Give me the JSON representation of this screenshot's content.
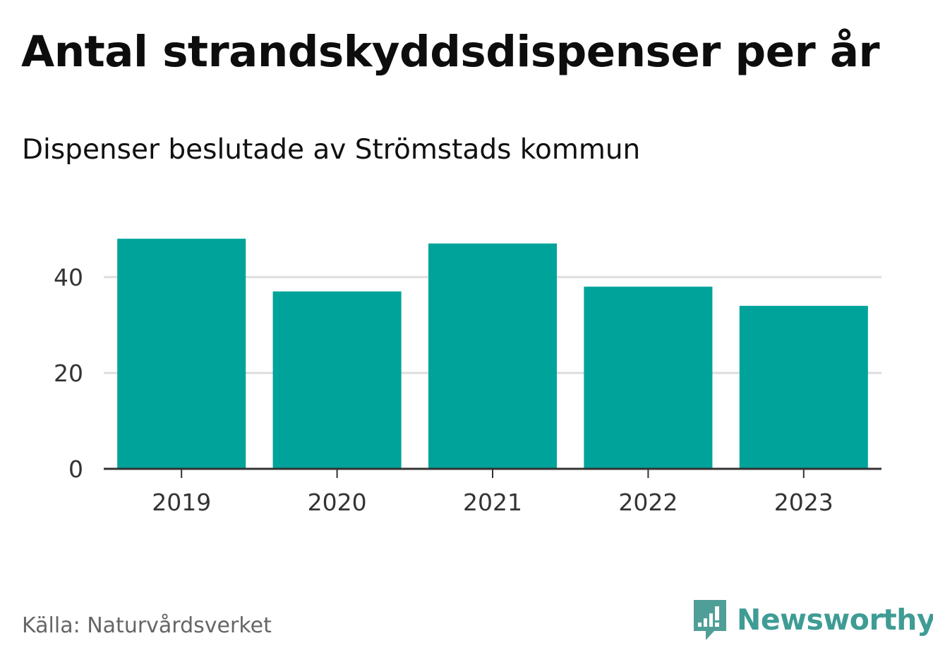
{
  "header": {
    "title": "Antal strandskyddsdispenser per år",
    "subtitle": "Dispenser beslutade av Strömstads kommun"
  },
  "footer": {
    "source": "Källa: Naturvårdsverket",
    "brand": "Newsworthy",
    "brand_icon": "newsworthy-chart-bubble-icon"
  },
  "colors": {
    "bar": "#00a39a",
    "grid": "#dddddd",
    "axis": "#333333",
    "brand": "#3f9c95"
  },
  "chart_data": {
    "type": "bar",
    "title": "Antal strandskyddsdispenser per år",
    "subtitle": "Dispenser beslutade av Strömstads kommun",
    "xlabel": "",
    "ylabel": "",
    "categories": [
      "2019",
      "2020",
      "2021",
      "2022",
      "2023"
    ],
    "values": [
      48,
      37,
      47,
      38,
      34
    ],
    "yticks": [
      0,
      20,
      40
    ],
    "ylim": [
      0,
      52
    ],
    "grid": true,
    "legend": "none"
  }
}
